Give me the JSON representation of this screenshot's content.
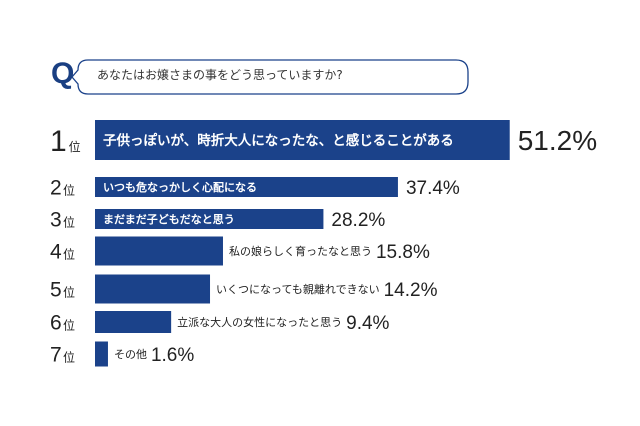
{
  "question": {
    "letter": "Q",
    "text": "あなたはお嬢さまの事をどう思っていますか?"
  },
  "colors": {
    "bar": "#1b428a",
    "accent": "#1a3f82",
    "bubble_border": "#1b428a",
    "text_inside": "#ffffff",
    "text_outside": "#222222"
  },
  "rank_suffix": "位",
  "chart_data": {
    "type": "bar",
    "orientation": "horizontal",
    "title": "",
    "xlabel": "",
    "ylabel": "",
    "unit": "%",
    "xlim": [
      0,
      60
    ],
    "grid": false,
    "legend": "none",
    "categories": [
      "子供っぽいが、時折大人になったな、と感じることがある",
      "いつも危なっかしく心配になる",
      "まだまだ子どもだなと思う",
      "私の娘らしく育ったなと思う",
      "いくつになっても親離れできない",
      "立派な大人の女性になったと思う",
      "その他"
    ],
    "ranks": [
      "1",
      "2",
      "3",
      "4",
      "5",
      "6",
      "7"
    ],
    "values": [
      51.2,
      37.4,
      28.2,
      15.8,
      14.2,
      9.4,
      1.6
    ],
    "value_labels": [
      "51.2%",
      "37.4%",
      "28.2%",
      "15.8%",
      "14.2%",
      "9.4%",
      "1.6%"
    ]
  }
}
